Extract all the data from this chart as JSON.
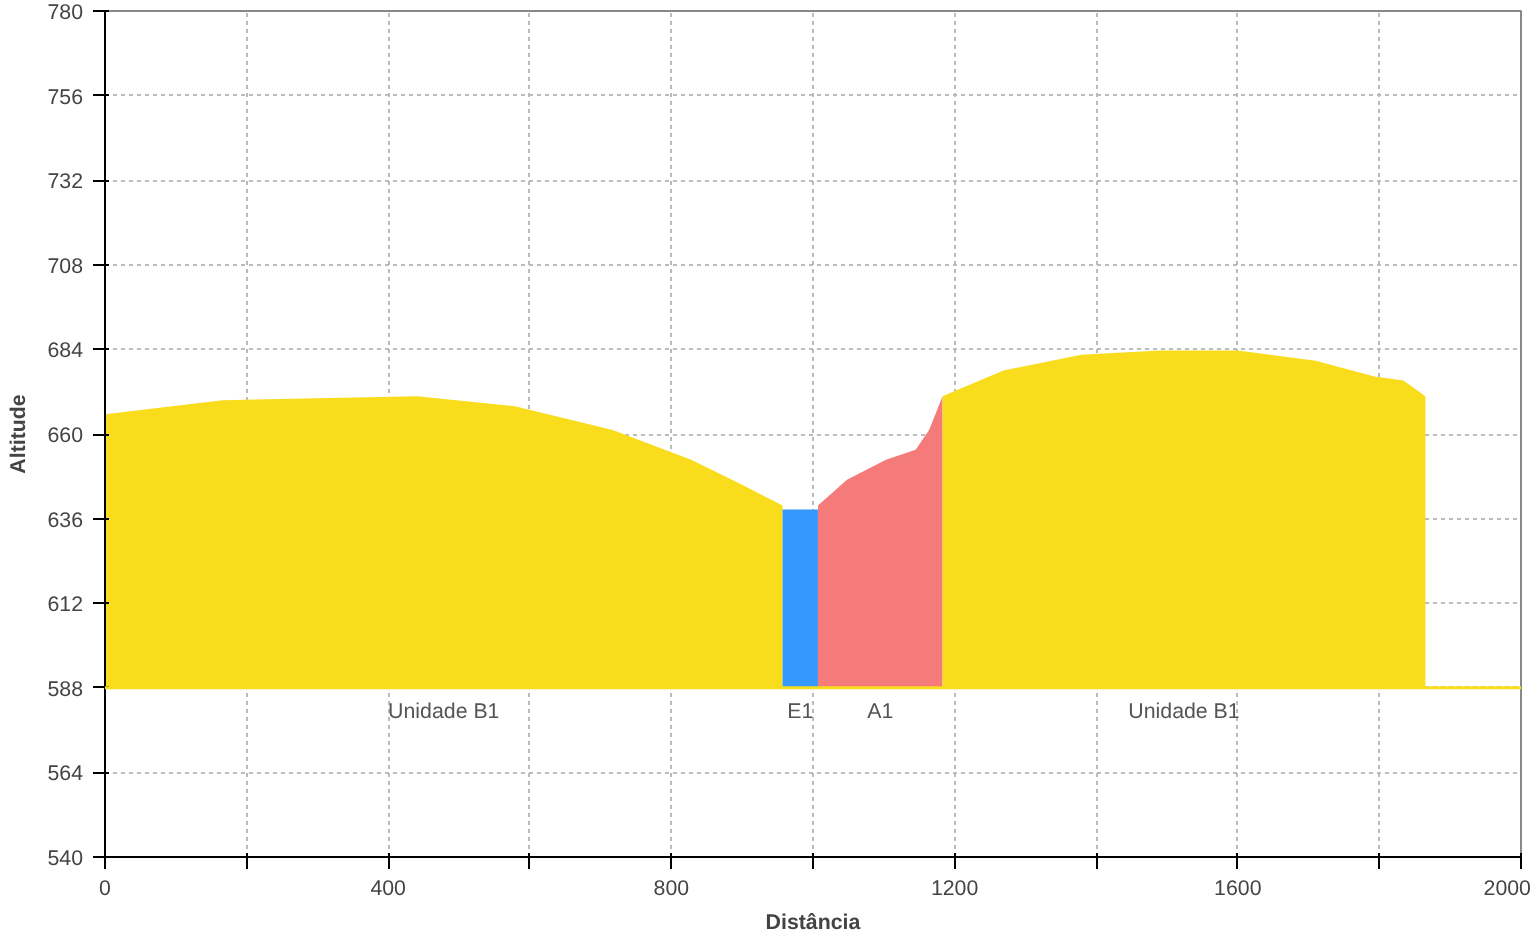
{
  "chart_data": {
    "type": "area",
    "xlabel": "Distância",
    "ylabel": "Altitude",
    "series": [
      {
        "name": "Unidade B1",
        "color": "#f9dc1c",
        "x": [
          0,
          166,
          441,
          579,
          717,
          828,
          897,
          957
        ],
        "values": [
          665.6,
          669.6,
          670.7,
          667.9,
          661.1,
          652.7,
          645.9,
          639.7
        ]
      },
      {
        "name": "E1",
        "color": "#3399ff",
        "x": [
          957,
          1007
        ],
        "values": [
          638.6,
          638.6
        ]
      },
      {
        "name": "A1",
        "color": "#f57a7a",
        "x": [
          1007,
          1048,
          1103,
          1145,
          1164,
          1183
        ],
        "values": [
          639.7,
          647,
          652.7,
          655.5,
          661.1,
          670.7
        ]
      },
      {
        "name": "Unidade B1",
        "color": "#f9dc1c",
        "x": [
          1183,
          1269,
          1379,
          1490,
          1600,
          1710,
          1793,
          1834,
          1865
        ],
        "values": [
          670.7,
          678,
          682.5,
          683.7,
          683.7,
          680.8,
          676.3,
          675.2,
          670.7
        ]
      }
    ],
    "ref_lines": [
      {
        "axis": "y",
        "value": 588,
        "color": "#f9dc1c"
      }
    ],
    "xlim": [
      0,
      2000
    ],
    "ylim": [
      540,
      780
    ],
    "xticks": [
      0,
      {
        "value": 200,
        "label": null
      },
      400,
      {
        "value": 600,
        "label": null
      },
      800,
      {
        "value": 1000,
        "label": null
      },
      1200,
      {
        "value": 1400,
        "label": null
      },
      1600,
      {
        "value": 1800,
        "label": null
      },
      2000
    ],
    "yticks": [
      540,
      564,
      588,
      612,
      636,
      660,
      684,
      708,
      732,
      756,
      780
    ],
    "grid": true
  }
}
